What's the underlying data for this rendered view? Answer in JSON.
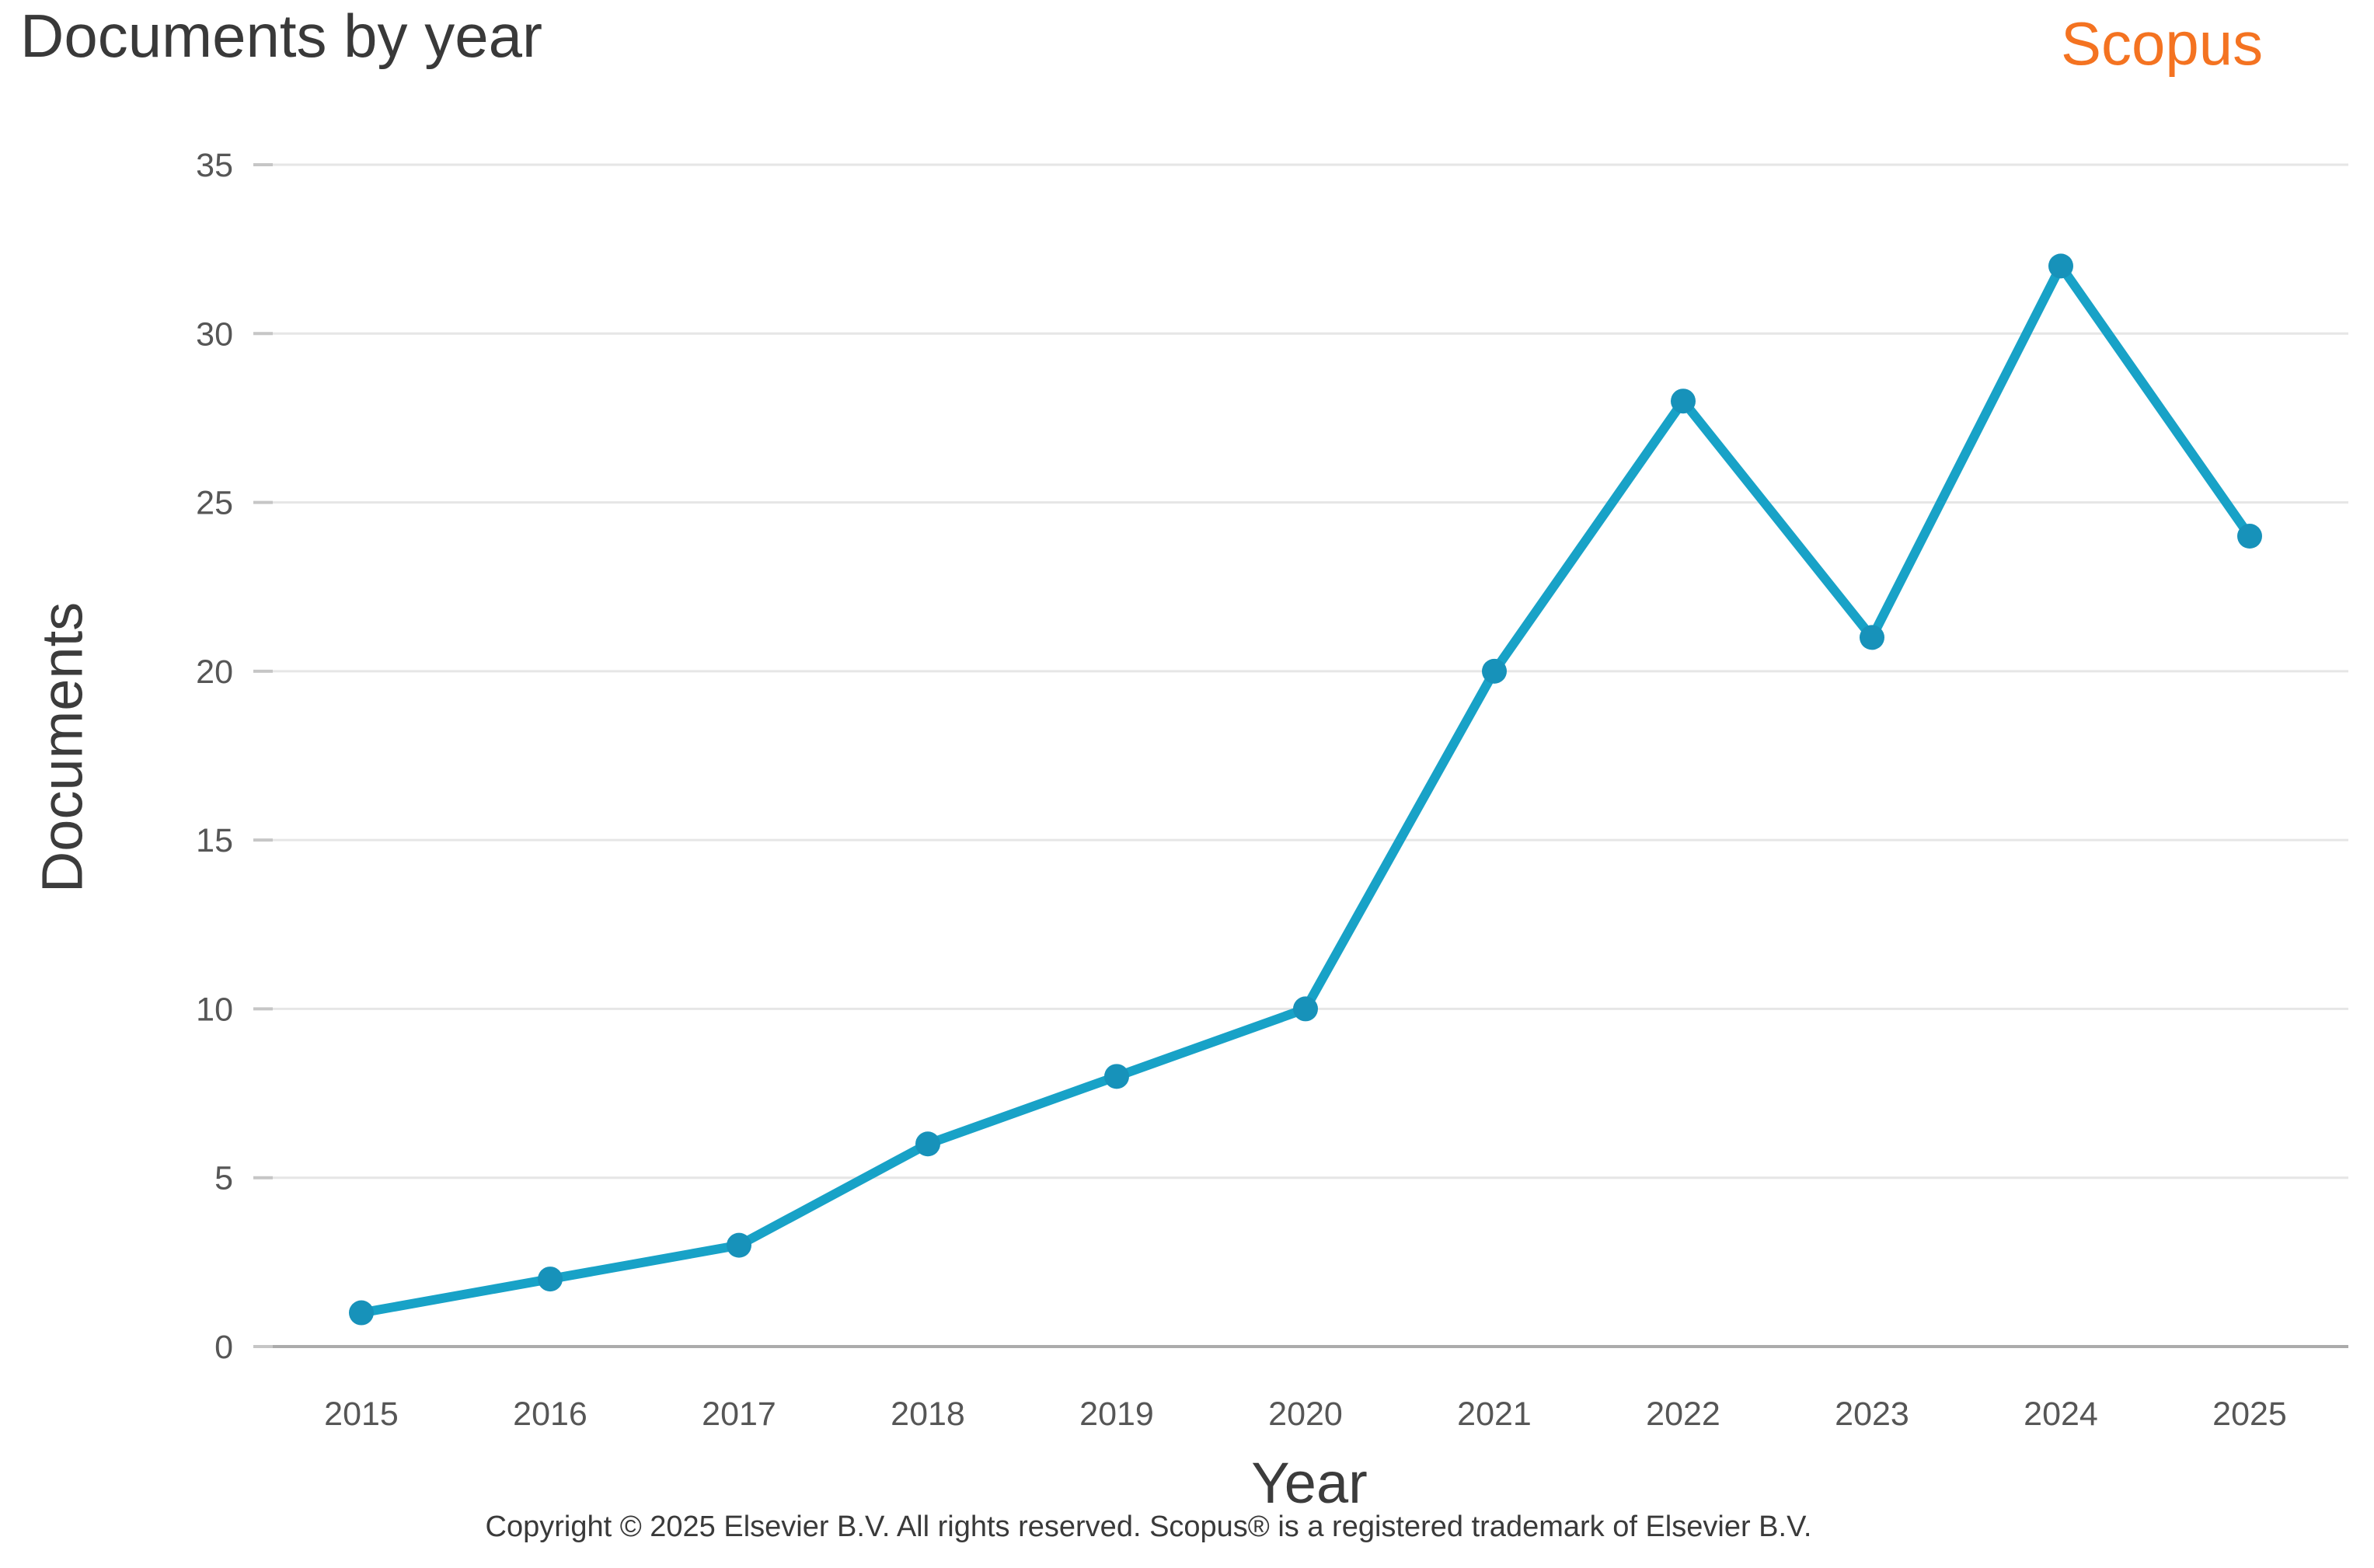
{
  "header": {
    "title": "Documents by year",
    "brand": "Scopus"
  },
  "chart_data": {
    "type": "line",
    "x": [
      "2015",
      "2016",
      "2017",
      "2018",
      "2019",
      "2020",
      "2021",
      "2022",
      "2023",
      "2024",
      "2025"
    ],
    "series": [
      {
        "name": "Documents",
        "values": [
          1,
          2,
          3,
          6,
          8,
          10,
          20,
          28,
          21,
          32,
          24
        ]
      }
    ],
    "title": "Documents by year",
    "xlabel": "Year",
    "ylabel": "Documents",
    "ylim": [
      0,
      35
    ],
    "yticks": [
      0,
      5,
      10,
      15,
      20,
      25,
      30,
      35
    ],
    "grid": "horizontal",
    "legend": "none",
    "marker": "circle"
  },
  "colors": {
    "line": "#18A2C7",
    "marker": "#1792BA",
    "gridline": "#E6E6E6",
    "axis_line": "#ABABAB",
    "tick_stub": "#C6C6C6",
    "tick_label": "#565656",
    "heading_text": "#393939",
    "brand_orange": "#F47321"
  },
  "footer": {
    "copyright": "Copyright © 2025 Elsevier B.V. All rights reserved. Scopus® is a registered trademark of Elsevier B.V."
  }
}
